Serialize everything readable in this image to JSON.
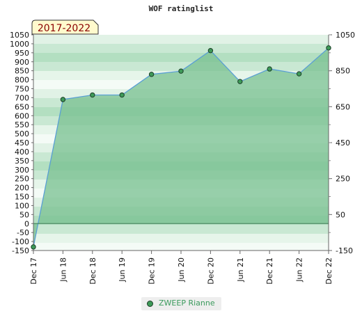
{
  "chart_data": {
    "type": "area",
    "title": "WOF ratinglist",
    "badge": "2017-2022",
    "x": [
      "Dec 17",
      "Jun 18",
      "Dec 18",
      "Jun 19",
      "Dec 19",
      "Jun 20",
      "Dec 20",
      "Jun 21",
      "Dec 21",
      "Jun 22",
      "Dec 22"
    ],
    "series": [
      {
        "name": "ZWEEP Rianne",
        "values": [
          -130,
          690,
          715,
          715,
          830,
          848,
          962,
          790,
          860,
          833,
          977
        ]
      }
    ],
    "baseline": 0,
    "y_left": {
      "min": -150,
      "max": 1050,
      "step": 50,
      "ticks": [
        "1050",
        "1000",
        "950",
        "900",
        "850",
        "800",
        "750",
        "700",
        "650",
        "600",
        "550",
        "500",
        "450",
        "400",
        "350",
        "300",
        "250",
        "200",
        "150",
        "100",
        "50",
        "0",
        "-50",
        "-100",
        "-150"
      ]
    },
    "y_right": {
      "ticks": [
        "1050",
        "850",
        "650",
        "450",
        "250",
        "50",
        "-150"
      ]
    },
    "colors": {
      "fill": "#78c090",
      "line": "#5a9fd4",
      "marker": "#3e9a58",
      "marker_edge": "#1b3d27",
      "badge_bg": "#fffacd",
      "badge_text": "#8b0000"
    },
    "legend_position": "bottom"
  }
}
